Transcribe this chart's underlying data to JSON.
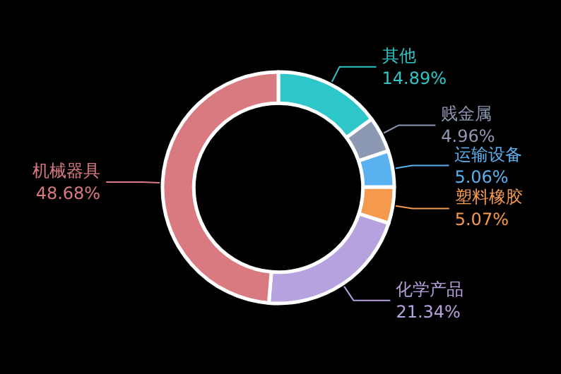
{
  "chart_data": {
    "type": "donut",
    "categories": [
      "其他",
      "贱金属",
      "运输设备",
      "塑料橡胶",
      "化学产品",
      "机械器具"
    ],
    "values": [
      14.89,
      4.96,
      5.06,
      5.07,
      21.34,
      48.68
    ],
    "value_labels": [
      "14.89%",
      "4.96%",
      "5.06%",
      "5.07%",
      "21.34%",
      "48.68%"
    ],
    "colors": [
      "#2ec7c9",
      "#8d98b3",
      "#5ab1ef",
      "#f5994e",
      "#b6a2de",
      "#d87a80"
    ],
    "legend": false
  }
}
